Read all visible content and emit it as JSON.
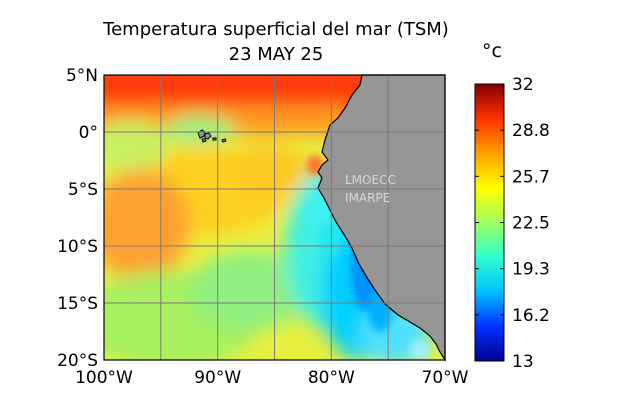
{
  "title_line1": "Temperatura superficial del mar (TSM)",
  "title_line2": "23 MAY 25",
  "colorbar": {
    "unit": "°c",
    "ticks": [
      "32",
      "28.8",
      "25.7",
      "22.5",
      "19.3",
      "16.2",
      "13"
    ],
    "min": 13,
    "max": 32,
    "colors": [
      "#00008f",
      "#0030ff",
      "#00c0ff",
      "#30ffd0",
      "#a0ff60",
      "#ffff00",
      "#ffa000",
      "#ff3000",
      "#800000"
    ]
  },
  "map": {
    "lat_labels": [
      "5°N",
      "0°",
      "5°S",
      "10°S",
      "15°S",
      "20°S"
    ],
    "lon_labels": [
      "100°W",
      "90°W",
      "80°W",
      "70°W"
    ],
    "lat_range": [
      -20,
      5
    ],
    "lon_range": [
      -100,
      -70
    ],
    "land_color": "#969696",
    "watermark_line1": "LMOECC",
    "watermark_line2": "IMARPE"
  }
}
